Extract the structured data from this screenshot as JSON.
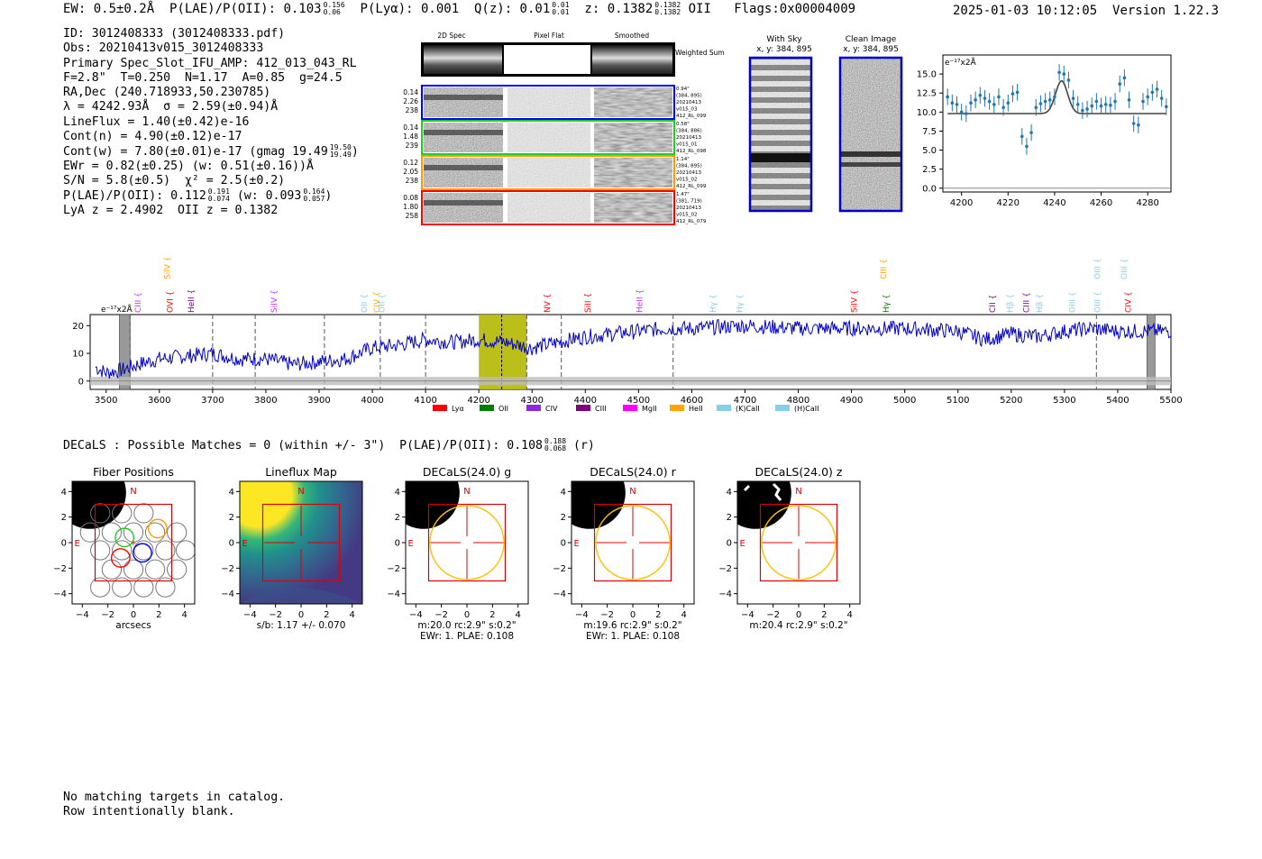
{
  "header": {
    "ew": "EW: 0.5±0.2Å",
    "plae_label": "P(LAE)/P(OII): 0.103",
    "plae_hi": "0.156",
    "plae_lo": "0.06",
    "plya": "P(Lyα): 0.001",
    "qz_label": "Q(z): 0.01",
    "qz_hi": "0.01",
    "qz_lo": "0.01",
    "z_label": "z: 0.1382",
    "z_hi": "0.1382",
    "z_lo": "0.1382",
    "z_line": "OII",
    "flags": "Flags:0x00004009",
    "timestamp": "2025-01-03 10:12:05",
    "version": "Version 1.22.3"
  },
  "info": {
    "id": "ID: 3012408333 (3012408333.pdf)",
    "obs": "Obs: 20210413v015_3012408333",
    "primary": "Primary Spec_Slot_IFU_AMP: 412_013_043_RL",
    "fparams": "F=2.8\"  T=0.250  N=1.17  A=0.85  g=24.5",
    "radec": "RA,Dec (240.718933,50.230785)",
    "lambda": "λ = 4242.93Å  σ = 2.59(±0.94)Å",
    "lineflux": "LineFlux = 1.40(±0.42)e-16",
    "contn": "Cont(n) = 4.90(±0.12)e-17",
    "contw": "Cont(w) = 7.80(±0.01)e-17 (gmag 19.49",
    "contw_hi": "19.50",
    "contw_lo": "19.49",
    "ewr": "EWr = 0.82(±0.25) (w: 0.51(±0.16))Å",
    "sn": "S/N = 5.8(±0.5)  χ² = 2.5(±0.2)",
    "plae": "P(LAE)/P(OII): 0.112",
    "plae_hi": "0.191",
    "plae_lo": "0.074",
    "plae_w": "(w: 0.093",
    "plae_w_hi": "0.164",
    "plae_w_lo": "0.057",
    "lya": "LyA z = 2.4902  OII z = 0.1382"
  },
  "cutouts": {
    "col_labels": [
      "2D Spec",
      "Pixel Flat",
      "Smoothed"
    ],
    "weighted": "Weighted Sum",
    "rows": [
      {
        "vals": [
          "0.14",
          "2.26",
          "238"
        ],
        "meta": [
          "0.94\"",
          "(384, 895)",
          "20210413",
          "v015_03",
          "412_RL_099"
        ],
        "color": "#0000ff"
      },
      {
        "vals": [
          "0.14",
          "1.48",
          "239"
        ],
        "meta": [
          "0.58\"",
          "(384, 886)",
          "20210413",
          "v015_01",
          "412_RL_098"
        ],
        "color": "#22cc22"
      },
      {
        "vals": [
          "0.12",
          "2.05",
          "238"
        ],
        "meta": [
          "1.14\"",
          "(384, 895)",
          "20210413",
          "v015_02",
          "412_RL_099"
        ],
        "color": "#ff9900"
      },
      {
        "vals": [
          "0.08",
          "1.80",
          "258"
        ],
        "meta": [
          "1.47\"",
          "(381, 719)",
          "20210413",
          "v015_02",
          "412_RL_079"
        ],
        "color": "#ff0000"
      }
    ],
    "with_sky": "With Sky",
    "with_sky_xy": "x, y: 384, 895",
    "clean": "Clean Image",
    "clean_xy": "x, y: 384, 895"
  },
  "chart_data": [
    {
      "type": "scatter",
      "title": "",
      "ylabel": "e⁻¹⁷x2Å",
      "xlim": [
        4192,
        4290
      ],
      "ylim": [
        -0.5,
        17.5
      ],
      "xticks": [
        4200,
        4220,
        4240,
        4260,
        4280
      ],
      "yticks": [
        "0.0",
        "2.5",
        "5.0",
        "7.5",
        "10.0",
        "12.5",
        "15.0"
      ],
      "points_x": [
        4194,
        4196,
        4198,
        4200,
        4202,
        4204,
        4206,
        4208,
        4210,
        4212,
        4214,
        4216,
        4218,
        4220,
        4222,
        4224,
        4226,
        4228,
        4230,
        4232,
        4234,
        4236,
        4238,
        4240,
        4242,
        4244,
        4246,
        4248,
        4250,
        4252,
        4254,
        4256,
        4258,
        4260,
        4262,
        4264,
        4266,
        4268,
        4270,
        4272,
        4274,
        4276,
        4278,
        4280,
        4282,
        4284,
        4286,
        4288
      ],
      "points_y": [
        12.0,
        11.2,
        11.0,
        10.0,
        9.8,
        11.2,
        11.6,
        12.2,
        11.8,
        11.4,
        11.0,
        12.0,
        10.6,
        11.2,
        12.4,
        12.6,
        6.8,
        5.5,
        7.3,
        10.6,
        11.1,
        11.4,
        11.6,
        12.0,
        15.2,
        15.0,
        14.2,
        11.8,
        11.0,
        10.2,
        10.4,
        10.8,
        11.4,
        10.8,
        11.0,
        10.9,
        11.4,
        13.7,
        14.5,
        11.6,
        8.5,
        8.3,
        11.4,
        12.0,
        12.6,
        13.0,
        11.8,
        10.7
      ],
      "fit": {
        "baseline": 9.8,
        "peak_x": 4243,
        "peak_amp": 4.3,
        "sigma": 2.6
      }
    },
    {
      "type": "line",
      "title": "",
      "ylabel": "e⁻¹⁷x2Å",
      "xlim": [
        3470,
        5500
      ],
      "ylim": [
        -3,
        24
      ],
      "xticks": [
        3500,
        3600,
        3700,
        3800,
        3900,
        4000,
        4100,
        4200,
        4300,
        4400,
        4500,
        4600,
        4700,
        4800,
        4900,
        5000,
        5100,
        5200,
        5300,
        5400,
        5500
      ],
      "yticks": [
        0,
        10,
        20
      ],
      "highlight": [
        4200,
        4290
      ],
      "line_center": 4243,
      "masked": [
        [
          3525,
          3545
        ],
        [
          5455,
          5470
        ]
      ],
      "dashed_lines": [
        3545,
        3700,
        3780,
        3910,
        4015,
        4100,
        4290,
        4355,
        4565,
        5360
      ],
      "legend": [
        {
          "name": "Lyα",
          "color": "#ff0000"
        },
        {
          "name": "OII",
          "color": "#008000"
        },
        {
          "name": "CIV",
          "color": "#8a2be2"
        },
        {
          "name": "CIII",
          "color": "#800080"
        },
        {
          "name": "MgII",
          "color": "#ff00ff"
        },
        {
          "name": "HeII",
          "color": "#ffa500"
        },
        {
          "name": "(K)CaII",
          "color": "#87ceeb"
        },
        {
          "name": "(H)CaII",
          "color": "#87ceeb"
        }
      ],
      "line_labels": [
        {
          "name": "CIII",
          "x": 3560,
          "tier": "mid",
          "color": "#c030ff"
        },
        {
          "name": "SiIV",
          "x": 3615,
          "tier": "top",
          "color": "#ffa500"
        },
        {
          "name": "OVI",
          "x": 3620,
          "tier": "mid",
          "color": "#ff0000"
        },
        {
          "name": "HeII",
          "x": 3660,
          "tier": "mid",
          "color": "#800080"
        },
        {
          "name": "SiIV",
          "x": 3815,
          "tier": "mid",
          "color": "#c030ff"
        },
        {
          "name": "OII",
          "x": 3985,
          "tier": "mid",
          "color": "#87ceeb"
        },
        {
          "name": "CIV",
          "x": 4008,
          "tier": "mid",
          "color": "#ffa500"
        },
        {
          "name": "OII",
          "x": 4018,
          "tier": "mid",
          "color": "#87ceeb"
        },
        {
          "name": "NV",
          "x": 4328,
          "tier": "mid",
          "color": "#ff0000"
        },
        {
          "name": "SiII",
          "x": 4405,
          "tier": "mid",
          "color": "#ff0000"
        },
        {
          "name": "HeII",
          "x": 4502,
          "tier": "mid",
          "color": "#c030ff"
        },
        {
          "name": "Hγ",
          "x": 4640,
          "tier": "mid",
          "color": "#87ceeb"
        },
        {
          "name": "Hγ",
          "x": 4690,
          "tier": "mid",
          "color": "#87ceeb"
        },
        {
          "name": "SiIV",
          "x": 4905,
          "tier": "mid",
          "color": "#ff0000"
        },
        {
          "name": "CIII",
          "x": 4960,
          "tier": "top",
          "color": "#ffa500"
        },
        {
          "name": "Hγ",
          "x": 4965,
          "tier": "mid",
          "color": "#008000"
        },
        {
          "name": "CII",
          "x": 5165,
          "tier": "mid",
          "color": "#800080"
        },
        {
          "name": "Hβ",
          "x": 5198,
          "tier": "mid",
          "color": "#87ceeb"
        },
        {
          "name": "CIII",
          "x": 5228,
          "tier": "mid",
          "color": "#800080"
        },
        {
          "name": "Hβ",
          "x": 5253,
          "tier": "mid",
          "color": "#87ceeb"
        },
        {
          "name": "OIII",
          "x": 5315,
          "tier": "mid",
          "color": "#87ceeb"
        },
        {
          "name": "OIII",
          "x": 5362,
          "tier": "mid",
          "color": "#87ceeb"
        },
        {
          "name": "OIII",
          "x": 5362,
          "tier": "top",
          "color": "#87ceeb"
        },
        {
          "name": "OIII",
          "x": 5412,
          "tier": "top",
          "color": "#87ceeb"
        },
        {
          "name": "CIV",
          "x": 5420,
          "tier": "mid",
          "color": "#ff0000"
        }
      ],
      "flux_anchors_x": [
        3480,
        3500,
        3530,
        3560,
        3600,
        3650,
        3700,
        3750,
        3800,
        3850,
        3900,
        3950,
        4000,
        4050,
        4100,
        4150,
        4200,
        4250,
        4300,
        4350,
        4400,
        4450,
        4500,
        4550,
        4600,
        4700,
        4800,
        4900,
        5000,
        5100,
        5150,
        5200,
        5250,
        5300,
        5350,
        5400,
        5450,
        5500
      ],
      "flux_anchors_y": [
        5,
        3,
        4,
        6,
        8,
        9,
        10,
        8,
        8,
        6,
        7,
        8,
        12,
        13,
        15,
        14,
        15,
        14,
        12,
        14,
        16,
        17,
        18,
        19,
        19,
        20,
        19,
        19,
        19,
        18,
        15,
        17,
        16,
        18,
        19,
        18,
        18,
        18
      ]
    },
    {
      "type": "heatmap",
      "title": "Fiber Positions",
      "xlabel": "arcsecs",
      "xticks": [
        "−4",
        "−2",
        "0",
        "2",
        "4"
      ],
      "yticks": [
        "4",
        "2",
        "0",
        "−2",
        "−4"
      ]
    },
    {
      "type": "heatmap",
      "title": "Lineflux Map",
      "xlabel": "s/b: 1.17 +/- 0.070",
      "xticks": [
        "−4",
        "−2",
        "0",
        "2",
        "4"
      ],
      "yticks": [
        "4",
        "2",
        "0",
        "−2",
        "−4"
      ]
    },
    {
      "type": "heatmap",
      "title": "DECaLS(24.0) g",
      "xlabel": "m:20.0 rc:2.9\"  s:0.2\"",
      "xlabel2": "EWr: 1. PLAE: 0.108",
      "xticks": [
        "−4",
        "−2",
        "0",
        "2",
        "4"
      ],
      "yticks": [
        "4",
        "2",
        "0",
        "−2",
        "−4"
      ]
    },
    {
      "type": "heatmap",
      "title": "DECaLS(24.0) r",
      "xlabel": "m:19.6 rc:2.9\"  s:0.2\"",
      "xlabel2": "EWr: 1. PLAE: 0.108",
      "xticks": [
        "−4",
        "−2",
        "0",
        "2",
        "4"
      ],
      "yticks": [
        "4",
        "2",
        "0",
        "−2",
        "−4"
      ]
    },
    {
      "type": "heatmap",
      "title": "DECaLS(24.0) z",
      "xlabel": "m:20.4 rc:2.9\"  s:0.2\"",
      "xticks": [
        "−4",
        "−2",
        "0",
        "2",
        "4"
      ],
      "yticks": [
        "4",
        "2",
        "0",
        "−2",
        "−4"
      ]
    }
  ],
  "compass": {
    "north": "N",
    "east": "E"
  },
  "decals": {
    "title": "DECaLS : Possible Matches = 0 (within +/- 3\")  P(LAE)/P(OII): 0.108",
    "hi": "0.188",
    "lo": "0.068",
    "band": "(r)"
  },
  "footer": {
    "line1": "No matching targets in catalog.",
    "line2": "Row intentionally blank."
  }
}
